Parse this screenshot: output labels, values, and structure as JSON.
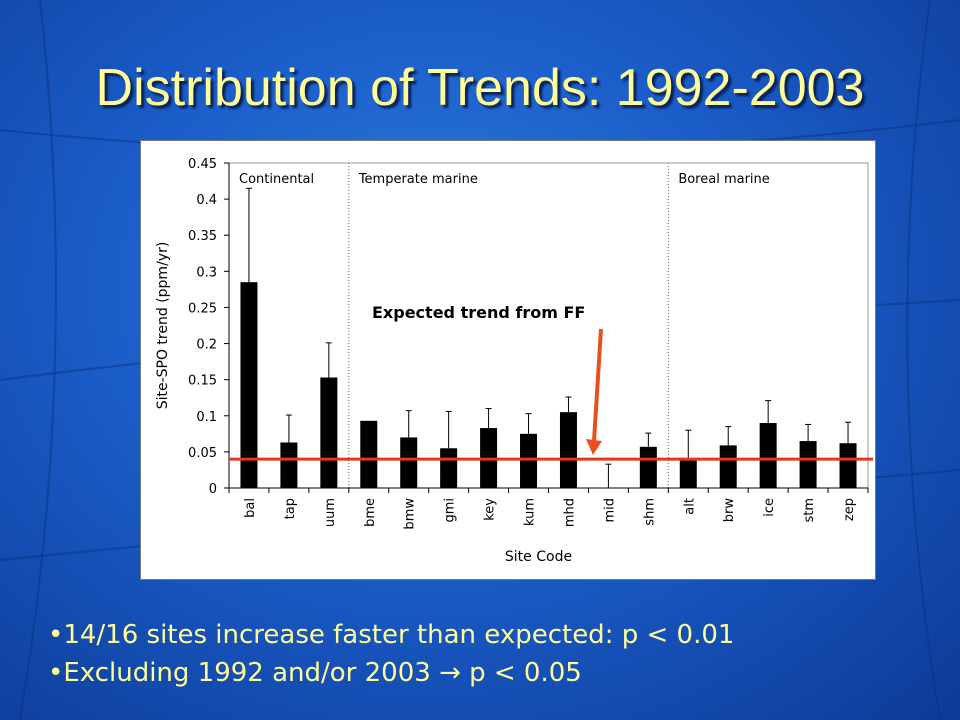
{
  "slide": {
    "title": "Distribution of Trends: 1992-2003",
    "bullets": [
      "•14/16 sites increase faster than expected: p < 0.01",
      "•Excluding 1992 and/or 2003  →  p < 0.05"
    ]
  },
  "colors": {
    "bar": "#000000",
    "expected_line": "#e8341c",
    "arrow": "#e8501c"
  },
  "chart_data": {
    "type": "bar",
    "categories": [
      "bal",
      "tap",
      "uum",
      "bme",
      "bmw",
      "gmi",
      "key",
      "kum",
      "mhd",
      "mid",
      "shm",
      "alt",
      "brw",
      "ice",
      "stm",
      "zep"
    ],
    "values": [
      0.285,
      0.063,
      0.153,
      0.093,
      0.07,
      0.055,
      0.083,
      0.075,
      0.105,
      0.0,
      0.057,
      0.038,
      0.059,
      0.09,
      0.065,
      0.062
    ],
    "error_upper": [
      0.415,
      0.101,
      0.201,
      null,
      0.107,
      0.106,
      0.11,
      0.103,
      0.126,
      0.033,
      0.076,
      0.08,
      0.085,
      0.121,
      0.088,
      0.091
    ],
    "xlabel": "Site Code",
    "ylabel": "Site-SPO trend (ppm/yr)",
    "ylim": [
      0,
      0.45
    ],
    "yticks": [
      "0",
      "0.05",
      "0.1",
      "0.15",
      "0.2",
      "0.25",
      "0.3",
      "0.35",
      "0.4",
      "0.45"
    ],
    "ytick_values": [
      0,
      0.05,
      0.1,
      0.15,
      0.2,
      0.25,
      0.3,
      0.35,
      0.4,
      0.45
    ],
    "regions": [
      {
        "label": "Continental",
        "start": 0,
        "end": 2
      },
      {
        "label": "Temperate marine",
        "start": 3,
        "end": 10
      },
      {
        "label": "Boreal marine",
        "start": 11,
        "end": 15
      }
    ],
    "expected_trend": 0.04,
    "annotation": "Expected trend from FF",
    "grid": false
  }
}
